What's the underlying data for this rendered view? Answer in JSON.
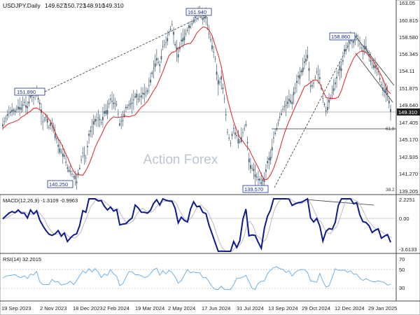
{
  "chart_data": {
    "type": "candlestick",
    "symbol_label": "USDJPY.Daily",
    "ohlc_label": {
      "open": "149.627",
      "high": "150.723",
      "low": "148.910",
      "close": "149.310"
    },
    "watermark": "Action Forex",
    "price_axis": {
      "ylim": [
        139.205,
        163.05
      ],
      "ticks": [
        "163.05",
        "160.815",
        "158.580",
        "156.345",
        "154.11",
        "151.875",
        "149.640",
        "147.405",
        "145.170",
        "142.935",
        "141.270",
        "139.205"
      ]
    },
    "last_price_label": "149.310",
    "x_axis": {
      "labels": [
        "19 Sep 2023",
        "2 Nov 2023",
        "18 Dec 2023",
        "2 Feb 2024",
        "19 Mar 2024",
        "2 May 2024",
        "17 Jun 2024",
        "31 Jul 2024",
        "13 Sep 2024",
        "29 Oct 2024",
        "12 Dec 2024",
        "29 Jan 2025"
      ]
    },
    "annotations": [
      "151.890",
      "161.940",
      "140.250",
      "139.570",
      "158.860",
      "61.8",
      "38.2"
    ],
    "price_series_close": [
      147.8,
      148.5,
      149.2,
      149.6,
      149.3,
      150.0,
      149.9,
      150.6,
      149.8,
      151.5,
      151.2,
      151.9,
      150.3,
      148.1,
      148.6,
      147.4,
      147.8,
      146.6,
      145.2,
      144.3,
      143.9,
      142.2,
      141.9,
      141.2,
      140.6,
      142.3,
      144.2,
      143.5,
      146.3,
      147.4,
      148.1,
      148.6,
      148.0,
      149.4,
      149.6,
      151.0,
      150.5,
      150.3,
      147.9,
      148.3,
      149.8,
      150.1,
      150.5,
      151.3,
      151.0,
      151.4,
      151.7,
      151.9,
      153.4,
      154.8,
      156.1,
      155.1,
      157.6,
      158.0,
      159.2,
      160.4,
      157.7,
      156.6,
      158.4,
      158.8,
      159.6,
      160.1,
      160.8,
      161.4,
      161.9,
      161.2,
      161.4,
      159.2,
      157.7,
      156.0,
      152.8,
      153.4,
      151.0,
      146.8,
      145.4,
      147.2,
      146.3,
      145.6,
      146.7,
      147.8,
      143.0,
      142.3,
      141.5,
      140.9,
      140.5,
      140.7,
      142.9,
      143.7,
      146.1,
      147.3,
      148.6,
      149.7,
      150.2,
      151.0,
      150.6,
      152.3,
      153.7,
      154.3,
      155.5,
      156.5,
      152.5,
      152.9,
      154.4,
      153.7,
      151.0,
      149.4,
      150.5,
      151.8,
      152.8,
      154.3,
      154.8,
      156.9,
      157.6,
      158.5,
      158.0,
      158.8,
      157.9,
      156.9,
      157.6,
      156.3,
      155.4,
      155.1,
      154.4,
      152.8,
      152.0,
      151.5,
      149.3
    ],
    "series": [
      {
        "name": "",
        "role": "moving-average"
      }
    ],
    "macd": {
      "label": "MACD(12,26,9) -1.3109 -0.9963",
      "ylim": [
        -3.6133,
        2.2251
      ],
      "ticks": [
        "2.2251",
        "0.00",
        "-3.6133"
      ]
    },
    "rsi": {
      "label": "RSI(14) 32.2015",
      "ylim": [
        0,
        100
      ],
      "ticks": [
        "70",
        "50",
        "30"
      ]
    },
    "colors": {
      "candle": "#4a6377",
      "ma": "#e02020",
      "macd": "#0c1a8c",
      "signal": "#b9b9cc",
      "rsi": "#6fb2e8",
      "annot_border": "#1e2f90",
      "annot_text": "#1e2f90",
      "last_price_bg": "#1e1e1e",
      "watermark": "#b9c6d3",
      "grid": "#9b9b9b"
    }
  }
}
